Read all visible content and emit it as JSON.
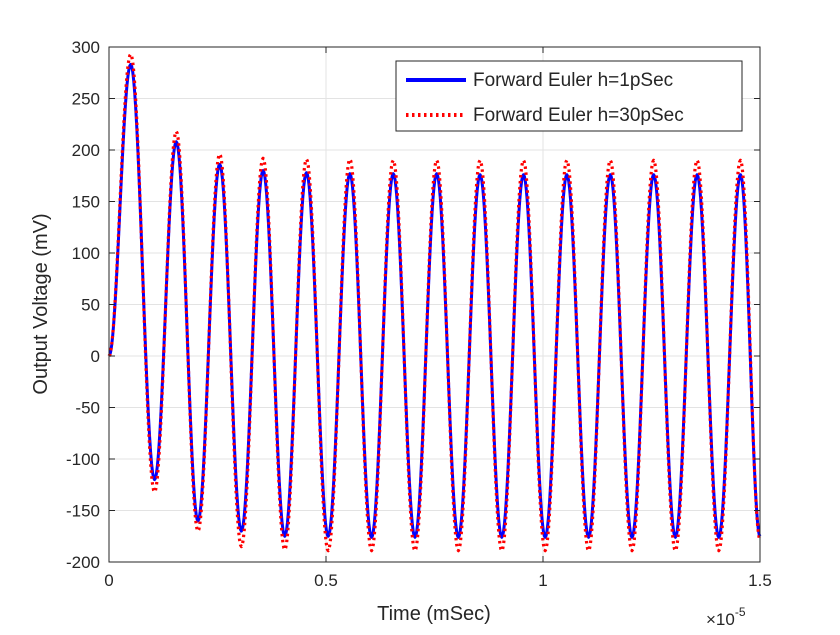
{
  "chart_data": {
    "type": "line",
    "title": "",
    "xlabel": "Time (mSec)",
    "ylabel": "Output Voltage (mV)",
    "x_exponent": "×10",
    "x_exponent_power": "-5",
    "xlim": [
      0,
      1.5
    ],
    "ylim": [
      -200,
      300
    ],
    "x_ticks": [
      0,
      0.5,
      1,
      1.5
    ],
    "x_tick_labels": [
      "0",
      "0.5",
      "1",
      "1.5"
    ],
    "y_ticks": [
      -200,
      -150,
      -100,
      -50,
      0,
      50,
      100,
      150,
      200,
      250,
      300
    ],
    "y_tick_labels": [
      "-200",
      "-150",
      "-100",
      "-50",
      "0",
      "50",
      "100",
      "150",
      "200",
      "250",
      "300"
    ],
    "grid": true,
    "legend_position": "top-right",
    "series": [
      {
        "name": "Forward Euler h=1pSec",
        "color": "#0000ff",
        "style": "solid",
        "x": [
          0,
          0.05,
          0.105,
          0.155,
          0.205,
          0.255,
          0.305,
          0.355,
          0.405,
          0.455,
          0.505,
          0.555,
          0.605,
          0.655,
          0.705,
          0.755,
          0.805,
          0.855,
          0.905,
          0.955,
          1.005,
          1.055,
          1.105,
          1.155,
          1.205,
          1.255,
          1.305,
          1.355,
          1.405,
          1.455,
          1.5
        ],
        "values": [
          0,
          283,
          -120,
          208,
          -160,
          186,
          -170,
          180,
          -175,
          178,
          -175,
          177,
          -176,
          177,
          -176,
          177,
          -176,
          176,
          -176,
          176,
          -176,
          176,
          -176,
          176,
          -176,
          176,
          -176,
          176,
          -176,
          176,
          -175
        ]
      },
      {
        "name": "Forward Euler h=30pSec",
        "color": "#ff0000",
        "style": "dotted",
        "x": [
          0,
          0.05,
          0.105,
          0.155,
          0.205,
          0.255,
          0.305,
          0.355,
          0.405,
          0.455,
          0.505,
          0.555,
          0.605,
          0.655,
          0.705,
          0.755,
          0.805,
          0.855,
          0.905,
          0.955,
          1.005,
          1.055,
          1.105,
          1.155,
          1.205,
          1.255,
          1.305,
          1.355,
          1.405,
          1.455,
          1.5
        ],
        "values": [
          0,
          293,
          -132,
          218,
          -170,
          196,
          -185,
          192,
          -188,
          191,
          -189,
          191,
          -189,
          190,
          -189,
          190,
          -189,
          190,
          -189,
          190,
          -189,
          190,
          -189,
          190,
          -189,
          190,
          -189,
          190,
          -189,
          190,
          -178
        ]
      }
    ]
  }
}
